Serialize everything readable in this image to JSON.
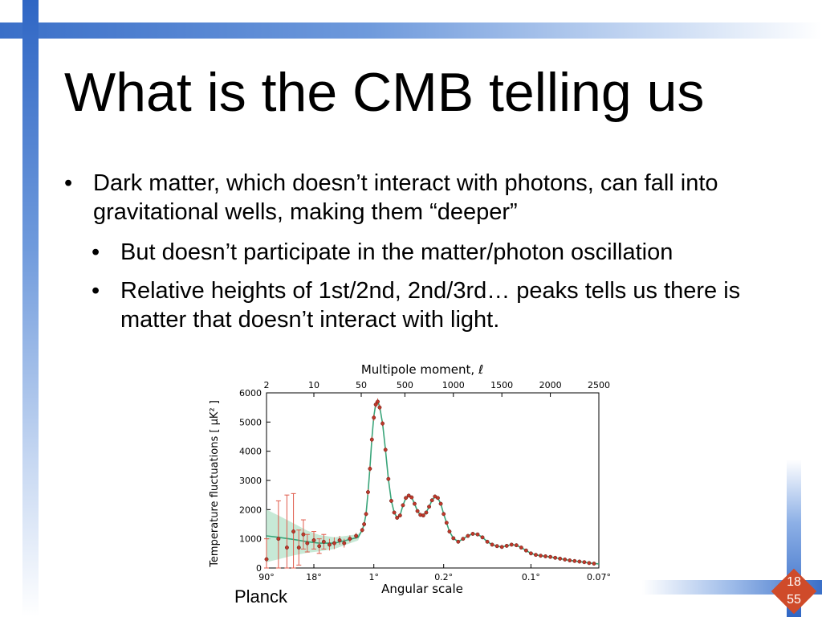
{
  "slide": {
    "title": "What is the CMB telling us",
    "bullets": [
      {
        "level": 1,
        "text": "Dark matter, which doesn’t interact with photons, can fall into gravitational wells, making them “deeper”"
      },
      {
        "level": 2,
        "text": "But doesn’t participate in the matter/photon oscillation"
      },
      {
        "level": 2,
        "text": "Relative heights of 1st/2nd, 2nd/3rd… peaks tells us there is matter that doesn’t interact with light."
      }
    ],
    "bullet_glyph": "•",
    "credit": "Planck",
    "page_current": "18",
    "page_total": "55"
  },
  "chart_data": {
    "type": "scatter",
    "title": "",
    "top_xlabel": "Multipole moment, ℓ",
    "xlabel": "Angular scale",
    "ylabel": "Temperature fluctuations [ μK² ]",
    "ylim": [
      0,
      6000
    ],
    "yticks": [
      0,
      1000,
      2000,
      3000,
      4000,
      5000,
      6000
    ],
    "top_ticks": [
      {
        "label": "2",
        "ell": 2
      },
      {
        "label": "10",
        "ell": 10
      },
      {
        "label": "50",
        "ell": 50
      },
      {
        "label": "500",
        "ell": 500
      },
      {
        "label": "1000",
        "ell": 1000
      },
      {
        "label": "1500",
        "ell": 1500
      },
      {
        "label": "2000",
        "ell": 2000
      },
      {
        "label": "2500",
        "ell": 2500
      }
    ],
    "bottom_ticks": [
      {
        "label": "90°",
        "ell": 2
      },
      {
        "label": "18°",
        "ell": 10
      },
      {
        "label": "1°",
        "ell": 180
      },
      {
        "label": "0.2°",
        "ell": 900
      },
      {
        "label": "0.1°",
        "ell": 1800
      },
      {
        "label": "0.07°",
        "ell": 2500
      }
    ],
    "x_scale": "log below ℓ=50, linear above",
    "colors": {
      "data": "#c0392b",
      "model": "#3aa57a",
      "band": "#bde5cf",
      "errorbar": "#e05a4a"
    },
    "series": [
      {
        "kind": "data",
        "points": [
          {
            "ell": 2,
            "y": 300,
            "err": 700
          },
          {
            "ell": 3,
            "y": 1000,
            "err": 1300
          },
          {
            "ell": 4,
            "y": 700,
            "err": 1800
          },
          {
            "ell": 5,
            "y": 1250,
            "err": 1300
          },
          {
            "ell": 6,
            "y": 700,
            "err": 600
          },
          {
            "ell": 7,
            "y": 1150,
            "err": 500
          },
          {
            "ell": 8,
            "y": 850,
            "err": 300
          },
          {
            "ell": 10,
            "y": 950,
            "err": 300
          },
          {
            "ell": 12,
            "y": 750,
            "err": 250
          },
          {
            "ell": 14,
            "y": 900,
            "err": 250
          },
          {
            "ell": 17,
            "y": 800,
            "err": 200
          },
          {
            "ell": 20,
            "y": 850,
            "err": 200
          },
          {
            "ell": 24,
            "y": 950,
            "err": 150
          },
          {
            "ell": 28,
            "y": 850,
            "err": 150
          },
          {
            "ell": 34,
            "y": 1000,
            "err": 120
          },
          {
            "ell": 42,
            "y": 1100,
            "err": 100
          },
          {
            "ell": 60,
            "y": 1300,
            "err": 80
          },
          {
            "ell": 80,
            "y": 1500,
            "err": 80
          },
          {
            "ell": 100,
            "y": 1850,
            "err": 80
          },
          {
            "ell": 120,
            "y": 2600,
            "err": 100
          },
          {
            "ell": 140,
            "y": 3400,
            "err": 100
          },
          {
            "ell": 160,
            "y": 4400,
            "err": 100
          },
          {
            "ell": 180,
            "y": 5150,
            "err": 110
          },
          {
            "ell": 200,
            "y": 5600,
            "err": 110
          },
          {
            "ell": 220,
            "y": 5700,
            "err": 110
          },
          {
            "ell": 240,
            "y": 5500,
            "err": 100
          },
          {
            "ell": 270,
            "y": 4950,
            "err": 90
          },
          {
            "ell": 300,
            "y": 4050,
            "err": 80
          },
          {
            "ell": 330,
            "y": 3050,
            "err": 70
          },
          {
            "ell": 360,
            "y": 2300,
            "err": 60
          },
          {
            "ell": 390,
            "y": 1900,
            "err": 50
          },
          {
            "ell": 420,
            "y": 1720,
            "err": 50
          },
          {
            "ell": 450,
            "y": 1800,
            "err": 50
          },
          {
            "ell": 480,
            "y": 2150,
            "err": 50
          },
          {
            "ell": 510,
            "y": 2400,
            "err": 50
          },
          {
            "ell": 540,
            "y": 2480,
            "err": 50
          },
          {
            "ell": 570,
            "y": 2420,
            "err": 50
          },
          {
            "ell": 600,
            "y": 2200,
            "err": 50
          },
          {
            "ell": 630,
            "y": 1950,
            "err": 45
          },
          {
            "ell": 660,
            "y": 1820,
            "err": 45
          },
          {
            "ell": 690,
            "y": 1800,
            "err": 45
          },
          {
            "ell": 720,
            "y": 1900,
            "err": 45
          },
          {
            "ell": 750,
            "y": 2100,
            "err": 45
          },
          {
            "ell": 780,
            "y": 2320,
            "err": 45
          },
          {
            "ell": 810,
            "y": 2450,
            "err": 45
          },
          {
            "ell": 840,
            "y": 2400,
            "err": 45
          },
          {
            "ell": 870,
            "y": 2200,
            "err": 45
          },
          {
            "ell": 900,
            "y": 1850,
            "err": 45
          },
          {
            "ell": 930,
            "y": 1550,
            "err": 40
          },
          {
            "ell": 960,
            "y": 1250,
            "err": 40
          },
          {
            "ell": 1000,
            "y": 1020,
            "err": 40
          },
          {
            "ell": 1050,
            "y": 900,
            "err": 40
          },
          {
            "ell": 1100,
            "y": 1000,
            "err": 40
          },
          {
            "ell": 1150,
            "y": 1100,
            "err": 40
          },
          {
            "ell": 1200,
            "y": 1170,
            "err": 40
          },
          {
            "ell": 1250,
            "y": 1150,
            "err": 40
          },
          {
            "ell": 1300,
            "y": 1050,
            "err": 40
          },
          {
            "ell": 1350,
            "y": 900,
            "err": 40
          },
          {
            "ell": 1400,
            "y": 800,
            "err": 40
          },
          {
            "ell": 1450,
            "y": 750,
            "err": 40
          },
          {
            "ell": 1500,
            "y": 720,
            "err": 40
          },
          {
            "ell": 1550,
            "y": 760,
            "err": 40
          },
          {
            "ell": 1600,
            "y": 800,
            "err": 40
          },
          {
            "ell": 1650,
            "y": 780,
            "err": 40
          },
          {
            "ell": 1700,
            "y": 700,
            "err": 40
          },
          {
            "ell": 1750,
            "y": 600,
            "err": 40
          },
          {
            "ell": 1800,
            "y": 500,
            "err": 40
          },
          {
            "ell": 1850,
            "y": 450,
            "err": 40
          },
          {
            "ell": 1900,
            "y": 420,
            "err": 40
          },
          {
            "ell": 1950,
            "y": 400,
            "err": 40
          },
          {
            "ell": 2000,
            "y": 380,
            "err": 40
          },
          {
            "ell": 2050,
            "y": 350,
            "err": 40
          },
          {
            "ell": 2100,
            "y": 320,
            "err": 40
          },
          {
            "ell": 2150,
            "y": 290,
            "err": 40
          },
          {
            "ell": 2200,
            "y": 260,
            "err": 40
          },
          {
            "ell": 2250,
            "y": 240,
            "err": 40
          },
          {
            "ell": 2300,
            "y": 220,
            "err": 40
          },
          {
            "ell": 2350,
            "y": 200,
            "err": 40
          },
          {
            "ell": 2400,
            "y": 170,
            "err": 40
          },
          {
            "ell": 2450,
            "y": 150,
            "err": 40
          }
        ]
      },
      {
        "kind": "model",
        "points": [
          {
            "ell": 2,
            "y": 1100,
            "band": 900
          },
          {
            "ell": 3,
            "y": 1050,
            "band": 750
          },
          {
            "ell": 5,
            "y": 980,
            "band": 550
          },
          {
            "ell": 8,
            "y": 900,
            "band": 380
          },
          {
            "ell": 12,
            "y": 850,
            "band": 280
          },
          {
            "ell": 20,
            "y": 850,
            "band": 200
          },
          {
            "ell": 30,
            "y": 950,
            "band": 150
          },
          {
            "ell": 45,
            "y": 1050,
            "band": 110
          },
          {
            "ell": 60,
            "y": 1300,
            "band": 0
          },
          {
            "ell": 80,
            "y": 1500,
            "band": 0
          },
          {
            "ell": 100,
            "y": 1850,
            "band": 0
          },
          {
            "ell": 120,
            "y": 2600,
            "band": 0
          },
          {
            "ell": 140,
            "y": 3450,
            "band": 0
          },
          {
            "ell": 160,
            "y": 4450,
            "band": 0
          },
          {
            "ell": 180,
            "y": 5200,
            "band": 0
          },
          {
            "ell": 200,
            "y": 5620,
            "band": 0
          },
          {
            "ell": 220,
            "y": 5720,
            "band": 0
          },
          {
            "ell": 240,
            "y": 5520,
            "band": 0
          },
          {
            "ell": 270,
            "y": 4950,
            "band": 0
          },
          {
            "ell": 300,
            "y": 4050,
            "band": 0
          },
          {
            "ell": 330,
            "y": 3050,
            "band": 0
          },
          {
            "ell": 360,
            "y": 2300,
            "band": 0
          },
          {
            "ell": 390,
            "y": 1900,
            "band": 0
          },
          {
            "ell": 420,
            "y": 1720,
            "band": 0
          },
          {
            "ell": 450,
            "y": 1800,
            "band": 0
          },
          {
            "ell": 480,
            "y": 2150,
            "band": 0
          },
          {
            "ell": 510,
            "y": 2400,
            "band": 0
          },
          {
            "ell": 540,
            "y": 2480,
            "band": 0
          },
          {
            "ell": 570,
            "y": 2420,
            "band": 0
          },
          {
            "ell": 600,
            "y": 2200,
            "band": 0
          },
          {
            "ell": 630,
            "y": 1950,
            "band": 0
          },
          {
            "ell": 660,
            "y": 1820,
            "band": 0
          },
          {
            "ell": 690,
            "y": 1800,
            "band": 0
          },
          {
            "ell": 720,
            "y": 1900,
            "band": 0
          },
          {
            "ell": 750,
            "y": 2100,
            "band": 0
          },
          {
            "ell": 780,
            "y": 2320,
            "band": 0
          },
          {
            "ell": 810,
            "y": 2450,
            "band": 0
          },
          {
            "ell": 840,
            "y": 2400,
            "band": 0
          },
          {
            "ell": 870,
            "y": 2200,
            "band": 0
          },
          {
            "ell": 900,
            "y": 1850,
            "band": 0
          },
          {
            "ell": 930,
            "y": 1550,
            "band": 0
          },
          {
            "ell": 960,
            "y": 1250,
            "band": 0
          },
          {
            "ell": 1000,
            "y": 1020,
            "band": 0
          },
          {
            "ell": 1050,
            "y": 900,
            "band": 0
          },
          {
            "ell": 1100,
            "y": 1000,
            "band": 0
          },
          {
            "ell": 1150,
            "y": 1100,
            "band": 0
          },
          {
            "ell": 1200,
            "y": 1170,
            "band": 0
          },
          {
            "ell": 1250,
            "y": 1150,
            "band": 0
          },
          {
            "ell": 1300,
            "y": 1050,
            "band": 0
          },
          {
            "ell": 1350,
            "y": 900,
            "band": 0
          },
          {
            "ell": 1400,
            "y": 800,
            "band": 0
          },
          {
            "ell": 1450,
            "y": 750,
            "band": 0
          },
          {
            "ell": 1500,
            "y": 720,
            "band": 0
          },
          {
            "ell": 1550,
            "y": 760,
            "band": 0
          },
          {
            "ell": 1600,
            "y": 800,
            "band": 0
          },
          {
            "ell": 1650,
            "y": 780,
            "band": 0
          },
          {
            "ell": 1700,
            "y": 700,
            "band": 0
          },
          {
            "ell": 1750,
            "y": 600,
            "band": 0
          },
          {
            "ell": 1800,
            "y": 500,
            "band": 0
          },
          {
            "ell": 1850,
            "y": 450,
            "band": 0
          },
          {
            "ell": 1900,
            "y": 420,
            "band": 0
          },
          {
            "ell": 1950,
            "y": 400,
            "band": 0
          },
          {
            "ell": 2000,
            "y": 380,
            "band": 0
          },
          {
            "ell": 2100,
            "y": 320,
            "band": 0
          },
          {
            "ell": 2200,
            "y": 260,
            "band": 0
          },
          {
            "ell": 2300,
            "y": 220,
            "band": 0
          },
          {
            "ell": 2400,
            "y": 170,
            "band": 0
          },
          {
            "ell": 2500,
            "y": 140,
            "band": 0
          }
        ]
      }
    ]
  }
}
